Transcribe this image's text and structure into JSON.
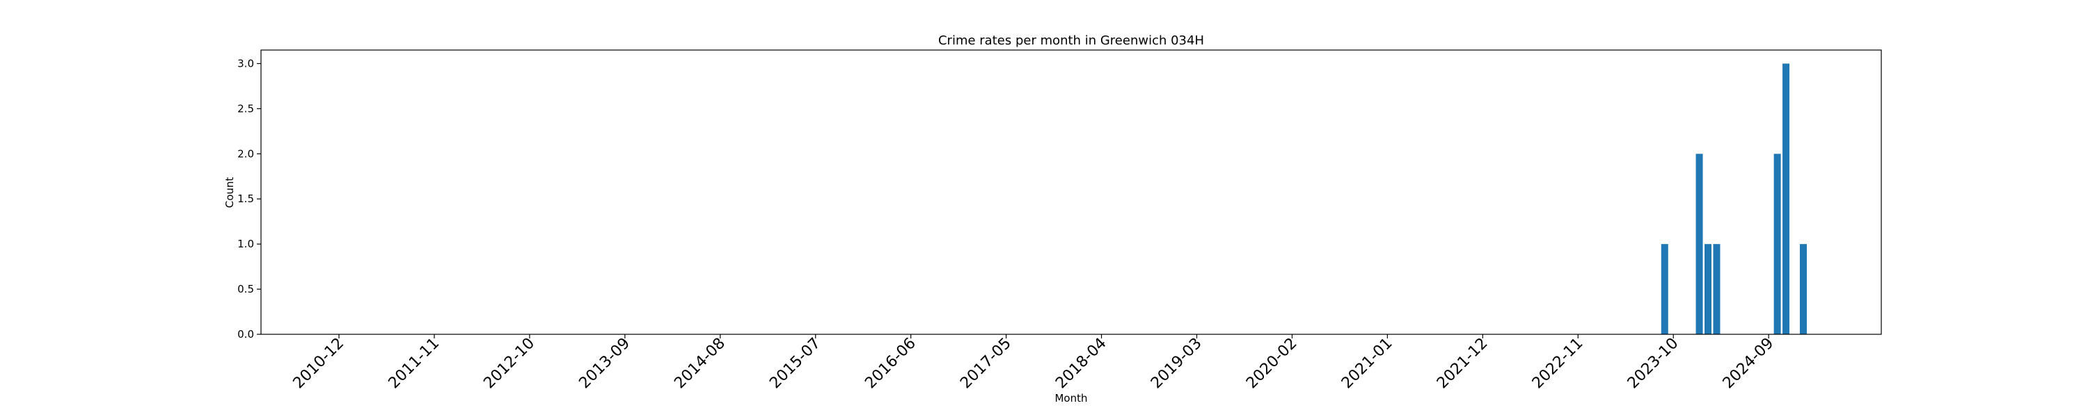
{
  "chart_data": {
    "type": "bar",
    "title": "Crime rates per month in Greenwich 034H",
    "xlabel": "Month",
    "ylabel": "Count",
    "ylim": [
      0,
      3.15
    ],
    "y_ticks": [
      "0.0",
      "0.5",
      "1.0",
      "1.5",
      "2.0",
      "2.5",
      "3.0"
    ],
    "x_range": [
      "2010-03",
      "2025-10"
    ],
    "x_ticks": [
      "2010-12",
      "2011-11",
      "2012-10",
      "2013-09",
      "2014-08",
      "2015-07",
      "2016-06",
      "2017-05",
      "2018-04",
      "2019-03",
      "2020-02",
      "2021-01",
      "2021-12",
      "2022-11",
      "2023-10",
      "2024-09"
    ],
    "categories": [
      "2023-09",
      "2024-01",
      "2024-02",
      "2024-03",
      "2024-10",
      "2024-11",
      "2025-01"
    ],
    "values": [
      1,
      2,
      1,
      1,
      2,
      3,
      1
    ],
    "bar_color": "#1f77b4",
    "grid": false,
    "legend": null
  }
}
